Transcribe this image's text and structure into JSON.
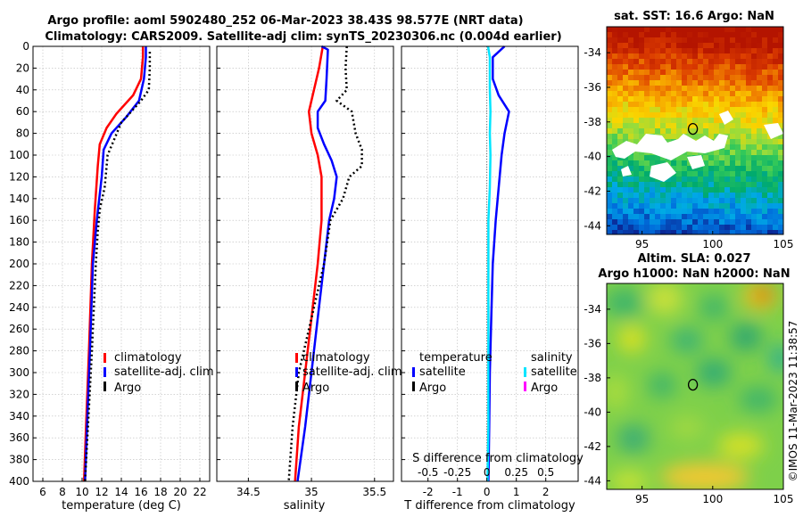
{
  "title": {
    "line1": "Argo profile: aoml 5902480_252 06-Mar-2023 38.43S 98.577E (NRT data)",
    "line2": "Climatology: CARS2009. Satellite-adj clim: synTS_20230306.nc (0.004d earlier)"
  },
  "right_side_label": "©IMOS 11-Mar-2023 11:38:57",
  "colors": {
    "climatology": "#ff0000",
    "satellite": "#0000ff",
    "argo": "#000000",
    "sal_satellite": "#00e5ff",
    "sal_argo": "#ff00ff"
  },
  "chart_data": [
    {
      "type": "line",
      "id": "temperature",
      "xlabel": "temperature (deg C)",
      "ylabel": "",
      "xlim": [
        5,
        23
      ],
      "ylim": [
        400,
        0
      ],
      "x_ticks": [
        6,
        8,
        10,
        12,
        14,
        16,
        18,
        20,
        22
      ],
      "y_ticks": [
        0,
        20,
        40,
        60,
        80,
        100,
        120,
        140,
        160,
        180,
        200,
        220,
        240,
        260,
        280,
        300,
        320,
        340,
        360,
        380,
        400
      ],
      "grid": true,
      "legend": [
        "climatology",
        "satellite-adj. clim",
        "Argo"
      ],
      "series": [
        {
          "name": "climatology",
          "points": [
            [
              16.2,
              0
            ],
            [
              16.2,
              10
            ],
            [
              16.0,
              30
            ],
            [
              15.2,
              45
            ],
            [
              13.5,
              62
            ],
            [
              12.5,
              75
            ],
            [
              11.8,
              90
            ],
            [
              11.6,
              110
            ],
            [
              11.3,
              150
            ],
            [
              11.0,
              200
            ],
            [
              10.7,
              280
            ],
            [
              10.4,
              350
            ],
            [
              10.2,
              400
            ]
          ]
        },
        {
          "name": "satellite-adj. clim",
          "points": [
            [
              16.5,
              0
            ],
            [
              16.5,
              10
            ],
            [
              16.3,
              30
            ],
            [
              15.8,
              50
            ],
            [
              14.5,
              65
            ],
            [
              13.0,
              80
            ],
            [
              12.2,
              95
            ],
            [
              12.0,
              120
            ],
            [
              11.5,
              160
            ],
            [
              11.1,
              200
            ],
            [
              10.8,
              280
            ],
            [
              10.5,
              350
            ],
            [
              10.3,
              400
            ]
          ]
        },
        {
          "name": "Argo",
          "points": [
            [
              16.9,
              5
            ],
            [
              16.9,
              20
            ],
            [
              16.8,
              40
            ],
            [
              16.0,
              50
            ],
            [
              14.0,
              70
            ],
            [
              12.6,
              100
            ],
            [
              12.3,
              130
            ],
            [
              11.8,
              150
            ],
            [
              11.6,
              170
            ],
            [
              11.4,
              200
            ],
            [
              11.0,
              280
            ],
            [
              10.6,
              350
            ],
            [
              10.3,
              400
            ]
          ]
        }
      ]
    },
    {
      "type": "line",
      "id": "salinity",
      "xlabel": "salinity",
      "ylabel": "",
      "xlim": [
        34.25,
        35.65
      ],
      "ylim": [
        400,
        0
      ],
      "x_ticks": [
        34.5,
        35,
        35.5
      ],
      "x_tick_labels": [
        "34.5",
        "35",
        "35.5"
      ],
      "grid": true,
      "legend": [
        "climatology",
        "satellite-adj. clim",
        "Argo"
      ],
      "series": [
        {
          "name": "climatology",
          "points": [
            [
              35.09,
              0
            ],
            [
              35.06,
              20
            ],
            [
              35.02,
              40
            ],
            [
              34.98,
              60
            ],
            [
              35.0,
              80
            ],
            [
              35.05,
              100
            ],
            [
              35.08,
              120
            ],
            [
              35.08,
              160
            ],
            [
              35.05,
              200
            ],
            [
              35.0,
              250
            ],
            [
              34.95,
              300
            ],
            [
              34.9,
              350
            ],
            [
              34.87,
              400
            ]
          ]
        },
        {
          "name": "satellite-adj. clim",
          "points": [
            [
              35.08,
              0
            ],
            [
              35.13,
              3
            ],
            [
              35.12,
              30
            ],
            [
              35.11,
              50
            ],
            [
              35.05,
              60
            ],
            [
              35.05,
              75
            ],
            [
              35.1,
              90
            ],
            [
              35.16,
              105
            ],
            [
              35.2,
              120
            ],
            [
              35.18,
              140
            ],
            [
              35.14,
              160
            ],
            [
              35.1,
              200
            ],
            [
              35.05,
              250
            ],
            [
              35.0,
              300
            ],
            [
              34.95,
              350
            ],
            [
              34.89,
              400
            ]
          ]
        },
        {
          "name": "Argo",
          "points": [
            [
              35.28,
              0
            ],
            [
              35.27,
              20
            ],
            [
              35.28,
              40
            ],
            [
              35.2,
              50
            ],
            [
              35.32,
              60
            ],
            [
              35.35,
              80
            ],
            [
              35.4,
              95
            ],
            [
              35.4,
              110
            ],
            [
              35.3,
              120
            ],
            [
              35.25,
              140
            ],
            [
              35.15,
              160
            ],
            [
              35.1,
              200
            ],
            [
              35.0,
              250
            ],
            [
              34.9,
              300
            ],
            [
              34.85,
              350
            ],
            [
              34.82,
              400
            ]
          ]
        }
      ]
    },
    {
      "type": "line",
      "id": "difference",
      "xlabel": "T difference from climatology",
      "xlabel_top": "S difference from climatology",
      "xlim": [
        -2.9,
        3.1
      ],
      "ylim": [
        400,
        0
      ],
      "x_ticks": [
        -2,
        -1,
        0,
        1,
        2
      ],
      "x_tick_labels": [
        "-2",
        "-1",
        "0",
        "1",
        "2"
      ],
      "top_ticks": [
        -0.5,
        -0.25,
        0,
        0.25,
        0.5
      ],
      "top_tick_labels": [
        "-0.5",
        "-0.25",
        "0",
        "0.25",
        "0.5"
      ],
      "top_scale": 4,
      "grid": true,
      "legend_left_header": "temperature",
      "legend_right_header": "salinity",
      "legend_left": [
        "satellite",
        "Argo"
      ],
      "legend_right": [
        "satellite",
        "Argo"
      ],
      "series": [
        {
          "name": "temperature satellite",
          "points": [
            [
              0.6,
              0
            ],
            [
              0.4,
              5
            ],
            [
              0.2,
              10
            ],
            [
              0.2,
              30
            ],
            [
              0.4,
              45
            ],
            [
              0.75,
              60
            ],
            [
              0.6,
              80
            ],
            [
              0.5,
              100
            ],
            [
              0.4,
              130
            ],
            [
              0.3,
              160
            ],
            [
              0.2,
              200
            ],
            [
              0.15,
              250
            ],
            [
              0.1,
              300
            ],
            [
              0.08,
              350
            ],
            [
              0.05,
              400
            ]
          ]
        },
        {
          "name": "salinity satellite",
          "points": [
            [
              0.04,
              0
            ],
            [
              0.1,
              10
            ],
            [
              0.1,
              40
            ],
            [
              0.12,
              60
            ],
            [
              0.1,
              80
            ],
            [
              0.12,
              100
            ],
            [
              0.1,
              130
            ],
            [
              0.05,
              160
            ],
            [
              0.05,
              200
            ],
            [
              0.05,
              300
            ],
            [
              0.05,
              350
            ],
            [
              0.02,
              400
            ]
          ]
        }
      ]
    }
  ],
  "maps": [
    {
      "id": "sst",
      "title": "sat. SST: 16.6 Argo: NaN",
      "x_ticks": [
        95,
        100,
        105
      ],
      "x_tick_labels": [
        "95",
        "100",
        "105"
      ],
      "y_ticks": [
        -34,
        -36,
        -38,
        -40,
        -42,
        -44
      ],
      "y_tick_labels": [
        "-34",
        "-36",
        "-38",
        "-40",
        "-42",
        "-44"
      ],
      "xlim": [
        92.5,
        105
      ],
      "ylim": [
        -44.5,
        -32.5
      ],
      "marker": [
        98.6,
        -38.4
      ]
    },
    {
      "id": "sla",
      "title_line1": "Altim. SLA: 0.027",
      "title_line2": "Argo h1000: NaN h2000: NaN",
      "x_ticks": [
        95,
        100,
        105
      ],
      "x_tick_labels": [
        "95",
        "100",
        "105"
      ],
      "y_ticks": [
        -34,
        -36,
        -38,
        -40,
        -42,
        -44
      ],
      "y_tick_labels": [
        "-34",
        "-36",
        "-38",
        "-40",
        "-42",
        "-44"
      ],
      "xlim": [
        92.5,
        105
      ],
      "ylim": [
        -44.5,
        -32.5
      ],
      "marker": [
        98.6,
        -38.4
      ]
    }
  ]
}
